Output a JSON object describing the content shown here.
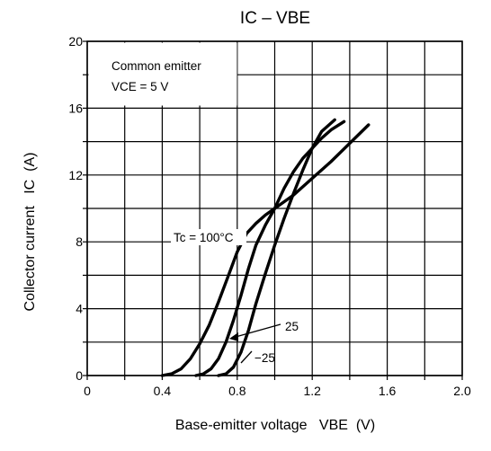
{
  "chart_data": {
    "type": "line",
    "title": "IC – VBE",
    "xlabel": "Base-emitter voltage   VBE  (V)",
    "ylabel": "Collector current   IC  (A)",
    "xlim": [
      0,
      2.0
    ],
    "ylim": [
      0,
      20
    ],
    "x_ticks": [
      0,
      0.2,
      0.4,
      0.6,
      0.8,
      1.0,
      1.2,
      1.4,
      1.6,
      1.8,
      2.0
    ],
    "x_tick_labels": [
      "0",
      "",
      "0.4",
      "",
      "0.8",
      "",
      "1.2",
      "",
      "1.6",
      "",
      "2.0"
    ],
    "y_ticks": [
      0,
      2,
      4,
      6,
      8,
      10,
      12,
      14,
      16,
      18,
      20
    ],
    "y_tick_labels": [
      "0",
      "",
      "4",
      "",
      "8",
      "",
      "12",
      "",
      "16",
      "",
      "20"
    ],
    "grid": true,
    "annotations": {
      "condition_line1": "Common emitter",
      "condition_line2": "VCE = 5 V"
    },
    "series": [
      {
        "name": "Tc = 100°C",
        "x": [
          0.4,
          0.45,
          0.5,
          0.55,
          0.6,
          0.65,
          0.7,
          0.75,
          0.8,
          0.85,
          0.9,
          0.95,
          1.0,
          1.1,
          1.2,
          1.3,
          1.4,
          1.5
        ],
        "y": [
          0.0,
          0.1,
          0.4,
          1.0,
          1.9,
          3.0,
          4.4,
          5.9,
          7.4,
          8.5,
          9.1,
          9.6,
          10.0,
          10.8,
          11.8,
          12.8,
          13.9,
          15.0
        ]
      },
      {
        "name": "25",
        "x": [
          0.58,
          0.62,
          0.66,
          0.7,
          0.74,
          0.78,
          0.82,
          0.86,
          0.9,
          0.95,
          1.0,
          1.05,
          1.1,
          1.15,
          1.2,
          1.25,
          1.3,
          1.37
        ],
        "y": [
          0.0,
          0.1,
          0.4,
          1.0,
          2.0,
          3.3,
          4.8,
          6.4,
          7.8,
          9.0,
          10.0,
          11.2,
          12.2,
          13.0,
          13.6,
          14.2,
          14.7,
          15.2
        ]
      },
      {
        "name": "−25",
        "x": [
          0.7,
          0.74,
          0.78,
          0.82,
          0.86,
          0.9,
          0.95,
          1.0,
          1.05,
          1.1,
          1.15,
          1.2,
          1.25,
          1.32
        ],
        "y": [
          0.0,
          0.1,
          0.5,
          1.4,
          2.7,
          4.3,
          6.1,
          7.8,
          9.4,
          10.9,
          12.3,
          13.6,
          14.6,
          15.3
        ]
      }
    ]
  }
}
